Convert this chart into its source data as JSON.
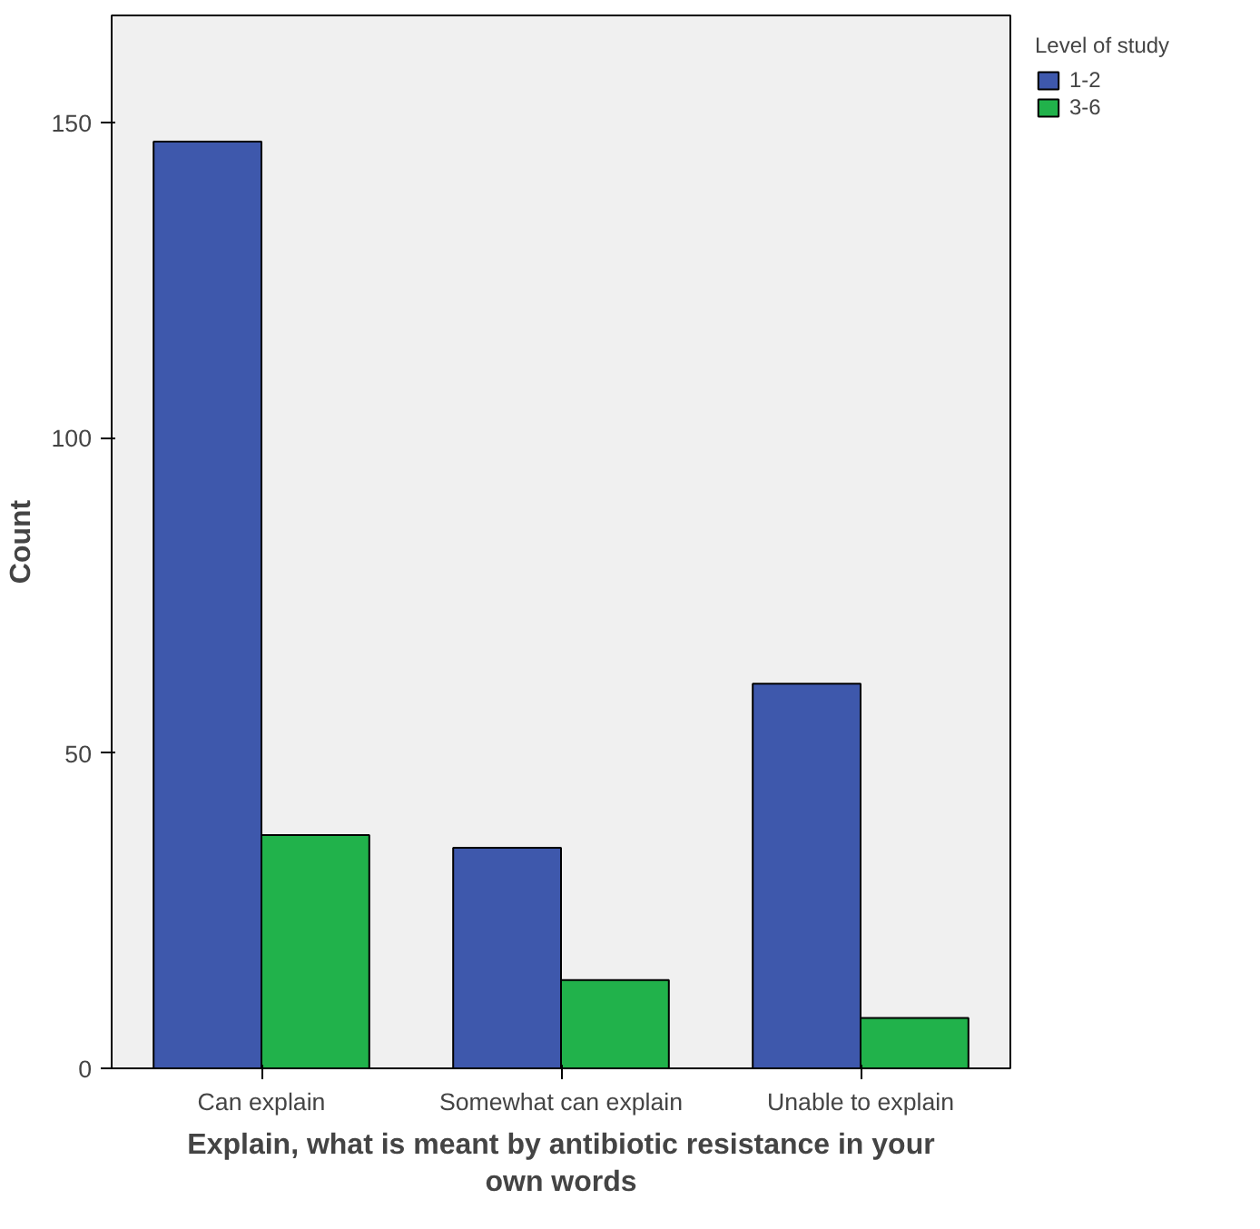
{
  "chart_data": {
    "type": "bar",
    "categories": [
      "Can explain",
      "Somewhat can explain",
      "Unable to explain"
    ],
    "series": [
      {
        "name": "1-2",
        "color": "#3e58ac",
        "values": [
          147,
          35,
          61
        ]
      },
      {
        "name": "3-6",
        "color": "#21b24b",
        "values": [
          37,
          14,
          8
        ]
      }
    ],
    "xlabel": "Explain, what is meant by antibiotic resistance in your own words",
    "ylabel": "Count",
    "legend_title": "Level of study",
    "ylim": [
      0,
      167
    ],
    "yticks": [
      0,
      50,
      100,
      150
    ],
    "grid": false,
    "legend": "right"
  }
}
